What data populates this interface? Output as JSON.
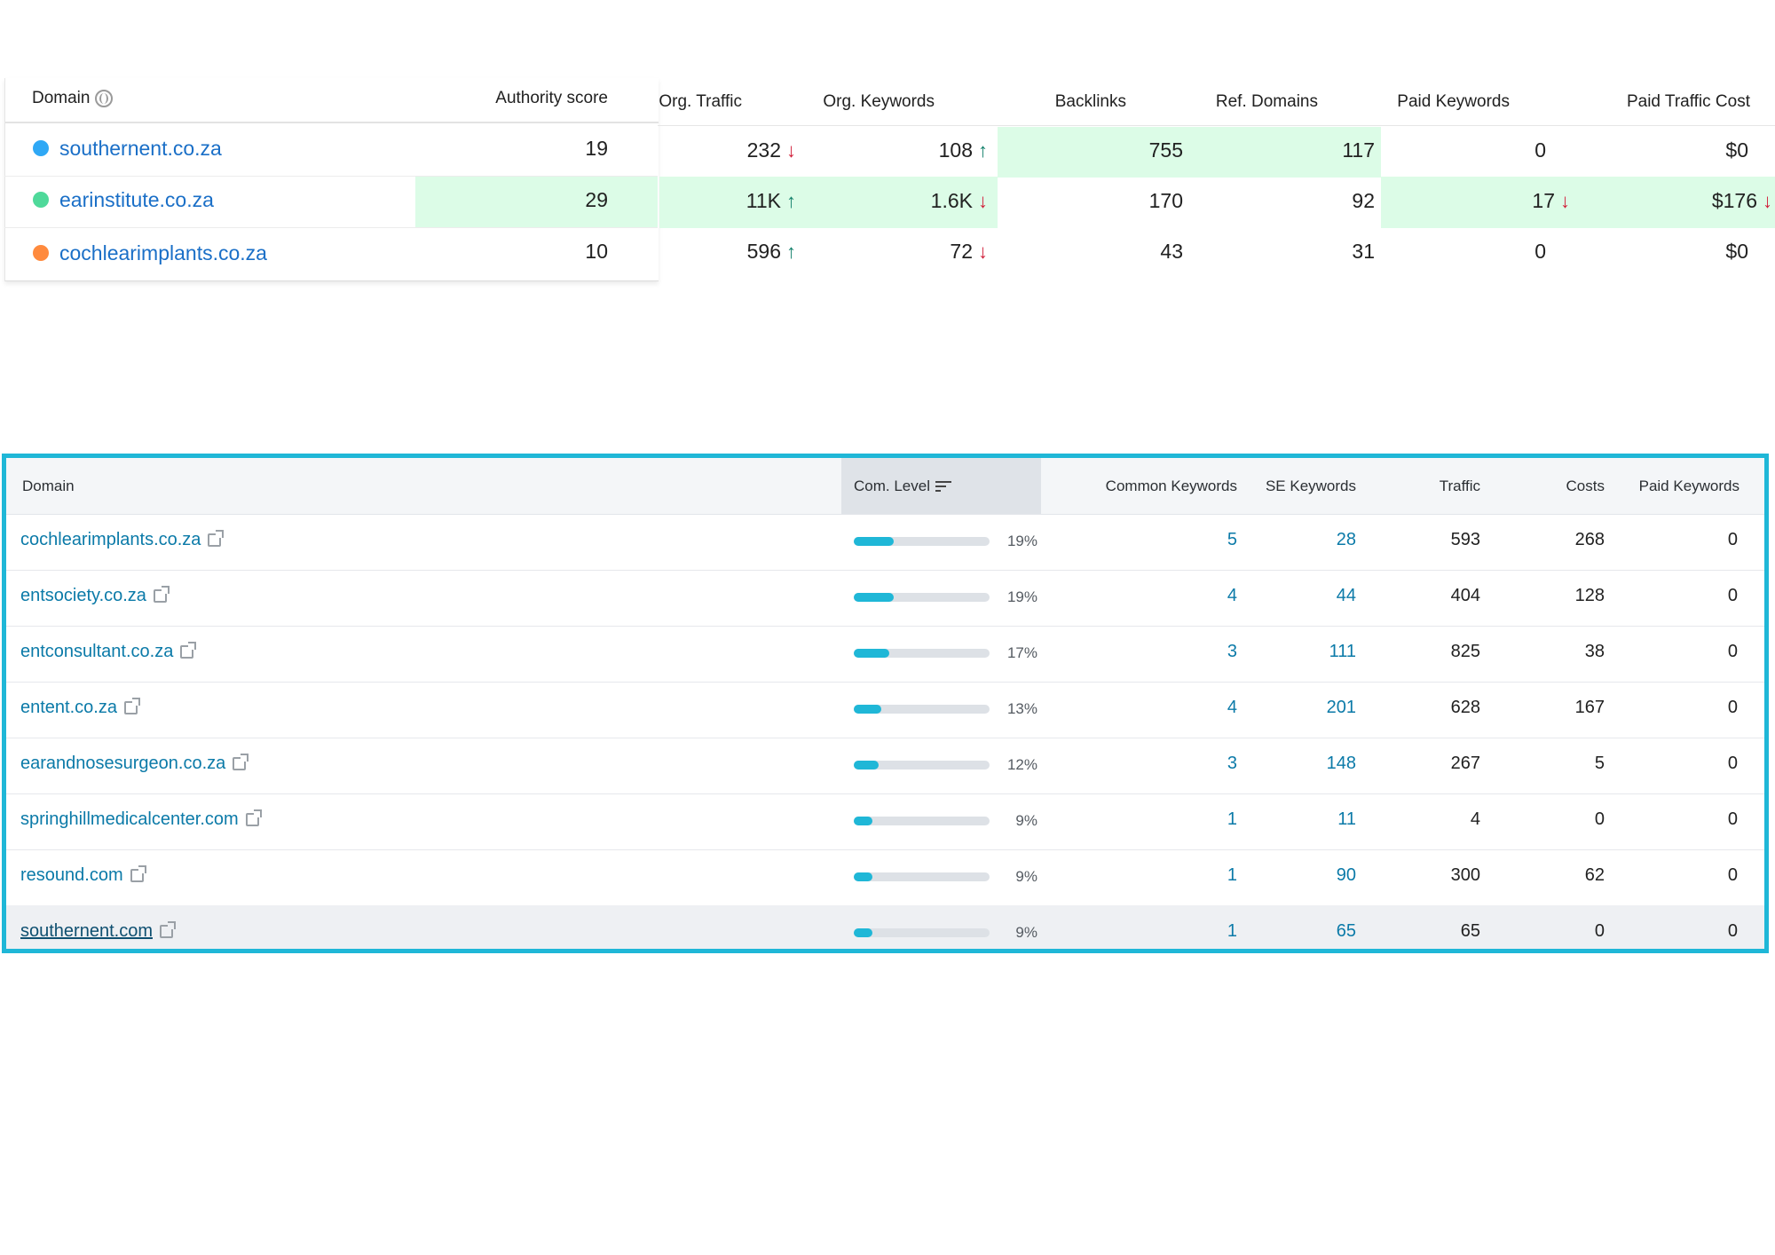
{
  "comparison": {
    "headers": {
      "domain": "Domain",
      "authority": "Authority score",
      "org_traffic": "Org. Traffic",
      "org_keywords": "Org. Keywords",
      "backlinks": "Backlinks",
      "ref_domains": "Ref. Domains",
      "paid_keywords": "Paid Keywords",
      "paid_traffic_cost": "Paid Traffic Cost"
    },
    "rows": [
      {
        "domain": "southernent.co.za",
        "dot_color": "#2fa8f5",
        "authority": "19",
        "org_traffic": "232",
        "org_traffic_trend": "down",
        "org_keywords": "108",
        "org_keywords_trend": "up",
        "backlinks": "755",
        "ref_domains": "117",
        "paid_keywords": "0",
        "paid_traffic_cost": "$0"
      },
      {
        "domain": "earinstitute.co.za",
        "dot_color": "#4fd99a",
        "authority": "29",
        "org_traffic": "11K",
        "org_traffic_trend": "up",
        "org_keywords": "1.6K",
        "org_keywords_trend": "down",
        "backlinks": "170",
        "ref_domains": "92",
        "paid_keywords": "17",
        "paid_keywords_trend": "down",
        "paid_traffic_cost": "$176",
        "paid_traffic_cost_trend": "down"
      },
      {
        "domain": "cochlearimplants.co.za",
        "dot_color": "#ff8a3d",
        "authority": "10",
        "org_traffic": "596",
        "org_traffic_trend": "up",
        "org_keywords": "72",
        "org_keywords_trend": "down",
        "backlinks": "43",
        "ref_domains": "31",
        "paid_keywords": "0",
        "paid_traffic_cost": "$0"
      }
    ]
  },
  "competitors": {
    "headers": {
      "domain": "Domain",
      "com_level": "Com. Level",
      "common_keywords": "Common Keywords",
      "se_keywords": "SE Keywords",
      "traffic": "Traffic",
      "costs": "Costs",
      "paid_keywords": "Paid Keywords"
    },
    "rows": [
      {
        "domain": "cochlearimplants.co.za",
        "com_level": "19%",
        "com_level_value": 0.19,
        "common_keywords": "5",
        "se_keywords": "28",
        "traffic": "593",
        "costs": "268",
        "paid_keywords": "0"
      },
      {
        "domain": "entsociety.co.za",
        "com_level": "19%",
        "com_level_value": 0.19,
        "common_keywords": "4",
        "se_keywords": "44",
        "traffic": "404",
        "costs": "128",
        "paid_keywords": "0"
      },
      {
        "domain": "entconsultant.co.za",
        "com_level": "17%",
        "com_level_value": 0.17,
        "common_keywords": "3",
        "se_keywords": "111",
        "traffic": "825",
        "costs": "38",
        "paid_keywords": "0"
      },
      {
        "domain": "entent.co.za",
        "com_level": "13%",
        "com_level_value": 0.13,
        "common_keywords": "4",
        "se_keywords": "201",
        "traffic": "628",
        "costs": "167",
        "paid_keywords": "0"
      },
      {
        "domain": "earandnosesurgeon.co.za",
        "com_level": "12%",
        "com_level_value": 0.12,
        "common_keywords": "3",
        "se_keywords": "148",
        "traffic": "267",
        "costs": "5",
        "paid_keywords": "0"
      },
      {
        "domain": "springhillmedicalcenter.com",
        "com_level": "9%",
        "com_level_value": 0.09,
        "common_keywords": "1",
        "se_keywords": "11",
        "traffic": "4",
        "costs": "0",
        "paid_keywords": "0"
      },
      {
        "domain": "resound.com",
        "com_level": "9%",
        "com_level_value": 0.09,
        "common_keywords": "1",
        "se_keywords": "90",
        "traffic": "300",
        "costs": "62",
        "paid_keywords": "0"
      },
      {
        "domain": "southernent.com",
        "com_level": "9%",
        "com_level_value": 0.09,
        "common_keywords": "1",
        "se_keywords": "65",
        "traffic": "65",
        "costs": "0",
        "paid_keywords": "0"
      }
    ]
  },
  "colors": {
    "accent": "#1fb7d7",
    "link": "#0b7aa8",
    "highlight": "#dcfce7",
    "trend_up": "#13806b",
    "trend_down": "#d1213b"
  }
}
